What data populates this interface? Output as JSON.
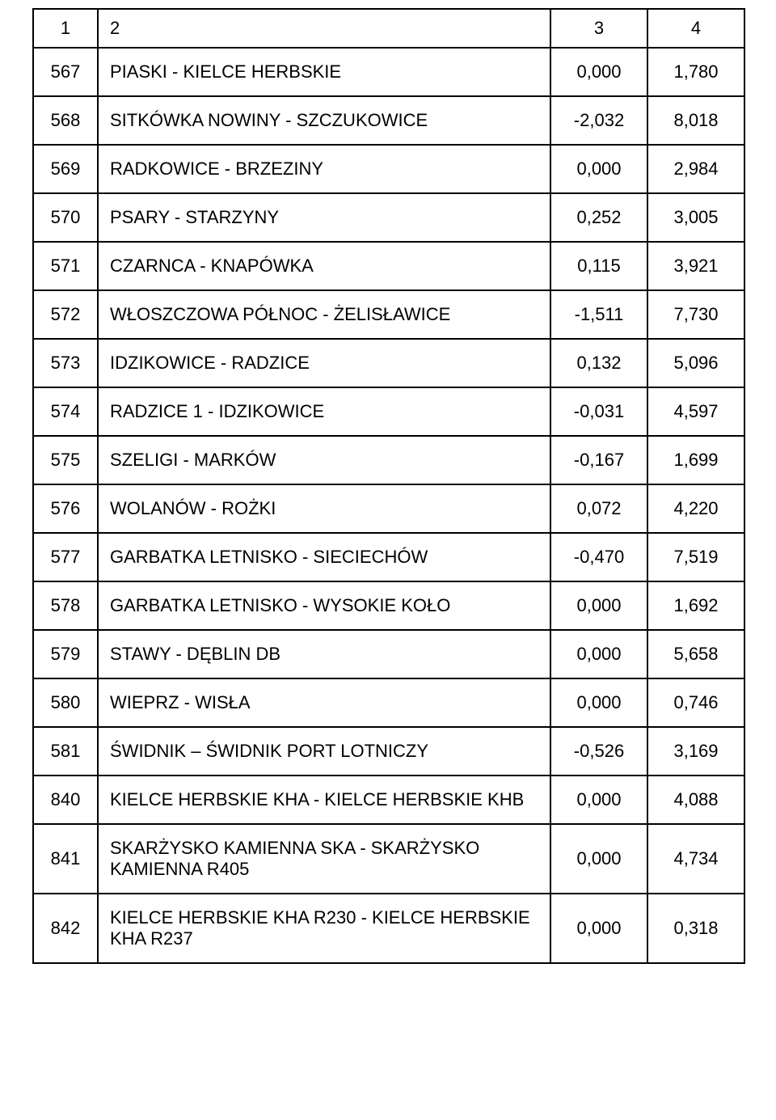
{
  "table": {
    "headers": {
      "c1": "1",
      "c2": "2",
      "c3": "3",
      "c4": "4"
    },
    "rows": [
      {
        "num": "567",
        "name": "PIASKI - KIELCE HERBSKIE",
        "v1": "0,000",
        "v2": "1,780"
      },
      {
        "num": "568",
        "name": "SITKÓWKA NOWINY - SZCZUKOWICE",
        "v1": "-2,032",
        "v2": "8,018"
      },
      {
        "num": "569",
        "name": "RADKOWICE - BRZEZINY",
        "v1": "0,000",
        "v2": "2,984"
      },
      {
        "num": "570",
        "name": "PSARY - STARZYNY",
        "v1": "0,252",
        "v2": "3,005"
      },
      {
        "num": "571",
        "name": "CZARNCA - KNAPÓWKA",
        "v1": "0,115",
        "v2": "3,921"
      },
      {
        "num": "572",
        "name": "WŁOSZCZOWA PÓŁNOC - ŻELISŁAWICE",
        "v1": "-1,511",
        "v2": "7,730"
      },
      {
        "num": "573",
        "name": "IDZIKOWICE - RADZICE",
        "v1": "0,132",
        "v2": "5,096"
      },
      {
        "num": "574",
        "name": "RADZICE 1 - IDZIKOWICE",
        "v1": "-0,031",
        "v2": "4,597"
      },
      {
        "num": "575",
        "name": "SZELIGI - MARKÓW",
        "v1": "-0,167",
        "v2": "1,699"
      },
      {
        "num": "576",
        "name": "WOLANÓW - ROŻKI",
        "v1": "0,072",
        "v2": "4,220"
      },
      {
        "num": "577",
        "name": "GARBATKA LETNISKO - SIECIECHÓW",
        "v1": "-0,470",
        "v2": "7,519"
      },
      {
        "num": "578",
        "name": "GARBATKA LETNISKO - WYSOKIE KOŁO",
        "v1": "0,000",
        "v2": "1,692"
      },
      {
        "num": "579",
        "name": "STAWY - DĘBLIN DB",
        "v1": "0,000",
        "v2": "5,658"
      },
      {
        "num": "580",
        "name": "WIEPRZ - WISŁA",
        "v1": "0,000",
        "v2": "0,746"
      },
      {
        "num": "581",
        "name": "ŚWIDNIK – ŚWIDNIK PORT LOTNICZY",
        "v1": "-0,526",
        "v2": "3,169"
      },
      {
        "num": "840",
        "name": "KIELCE HERBSKIE KHA - KIELCE HERBSKIE KHB",
        "v1": "0,000",
        "v2": "4,088"
      },
      {
        "num": "841",
        "name": "SKARŻYSKO KAMIENNA SKA - SKARŻYSKO KAMIENNA R405",
        "v1": "0,000",
        "v2": "4,734"
      },
      {
        "num": "842",
        "name": "KIELCE HERBSKIE KHA R230 - KIELCE HERBSKIE KHA R237",
        "v1": "0,000",
        "v2": "0,318"
      }
    ]
  }
}
